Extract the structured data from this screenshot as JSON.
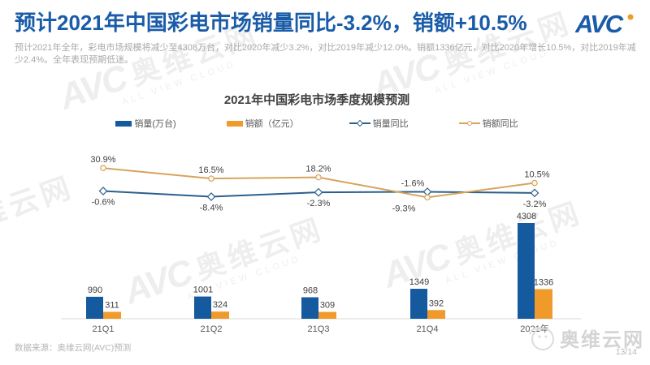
{
  "slide": {
    "title": "预计2021年中国彩电市场销量同比-3.2%，销额+10.5%",
    "subtitle": "预计2021年全年，彩电市场规模将减少至4308万台，对比2020年减少3.2%，对比2019年减少12.0%。销额1336亿元，对比2020年增长10.5%，对比2019年减少2.4%。全年表现预期低迷。",
    "logo_text": "AVC",
    "footer_source": "数据来源：奥维云网(AVC)预测",
    "page_number": "13/14",
    "watermark_brand": "奥维云网",
    "watermark_sub": "ALL VIEW CLOUD"
  },
  "colors": {
    "accent_blue": "#1A5CA8",
    "bar_blue": "#15599E",
    "bar_orange": "#F09A2B",
    "line_blue": "#2B5F8C",
    "line_orange": "#D7A45C",
    "logo_dot_orange": "#F09A2B"
  },
  "chart_data": {
    "type": "bar",
    "subtype": "bar+line combo",
    "title": "2021年中国彩电市场季度规模预测",
    "categories": [
      "21Q1",
      "21Q2",
      "21Q3",
      "21Q4",
      "2021年"
    ],
    "series": [
      {
        "name": "销量(万台)",
        "type": "bar",
        "color": "#15599E",
        "values": [
          990,
          1001,
          968,
          1349,
          4308
        ]
      },
      {
        "name": "销额（亿元）",
        "type": "bar",
        "color": "#F09A2B",
        "values": [
          311,
          324,
          309,
          392,
          1336
        ]
      },
      {
        "name": "销量同比",
        "type": "line",
        "color": "#2B5F8C",
        "values_pct": [
          -0.6,
          -8.4,
          -2.3,
          -1.6,
          -3.2
        ],
        "labels": [
          "-0.6%",
          "-8.4%",
          "-2.3%",
          "-1.6%",
          "-3.2%"
        ]
      },
      {
        "name": "销额同比",
        "type": "line",
        "color": "#D7A45C",
        "values_pct": [
          30.9,
          16.5,
          18.2,
          -9.3,
          10.5
        ],
        "labels": [
          "30.9%",
          "16.5%",
          "18.2%",
          "-9.3%",
          "10.5%"
        ]
      }
    ],
    "legend_position": "top",
    "gridlines": false,
    "value_axis_visible": false
  }
}
